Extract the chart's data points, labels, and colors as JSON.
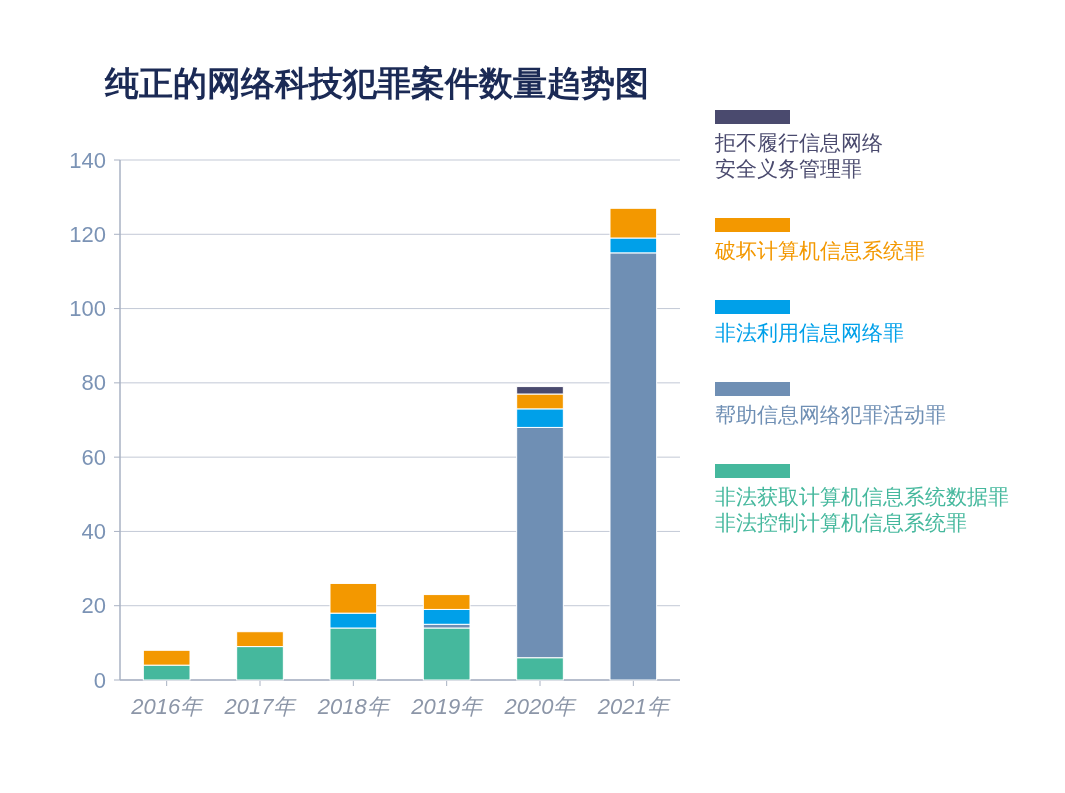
{
  "chart_data": {
    "type": "bar",
    "title": "纯正的网络科技犯罪案件数量趋势图",
    "categories": [
      "2016年",
      "2017年",
      "2018年",
      "2019年",
      "2020年",
      "2021年"
    ],
    "stacked": true,
    "ylim": [
      0,
      140
    ],
    "yticks": [
      0,
      20,
      40,
      60,
      80,
      100,
      120,
      140
    ],
    "grid": "y",
    "legend": "right",
    "series": [
      {
        "name": "非法获取计算机信息系统数据罪非法控制计算机信息系统罪",
        "color": "#45b89d",
        "values": [
          4,
          9,
          14,
          14,
          6,
          null
        ]
      },
      {
        "name": "帮助信息网络犯罪活动罪",
        "color": "#6f8fb4",
        "values": [
          null,
          null,
          null,
          1,
          62,
          115
        ]
      },
      {
        "name": "非法利用信息网络罪",
        "color": "#00a0e9",
        "values": [
          null,
          null,
          4,
          4,
          5,
          4
        ]
      },
      {
        "name": "破坏计算机信息系统罪",
        "color": "#f39800",
        "values": [
          4,
          4,
          8,
          4,
          4,
          8
        ]
      },
      {
        "name": "拒不履行信息网络安全义务管理罪",
        "color": "#4a4a6e",
        "values": [
          null,
          null,
          null,
          null,
          2,
          null
        ]
      }
    ]
  }
}
